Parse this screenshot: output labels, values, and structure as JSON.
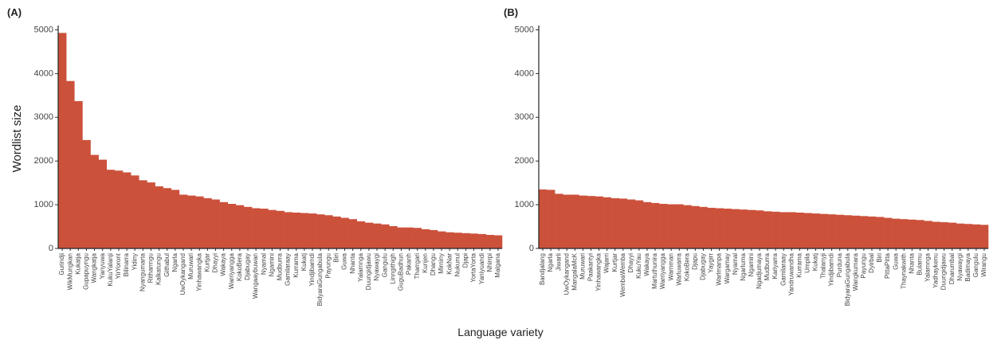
{
  "chart_data": [
    {
      "type": "bar",
      "label": "(A)",
      "ylabel": "Wordlist size",
      "xlabel": "Language variety",
      "color": "#cc513b",
      "ylim": [
        0,
        5100
      ],
      "yticks": [
        0,
        1000,
        2000,
        3000,
        4000,
        5000
      ],
      "categories": [
        "Gurindji",
        "WikMungkan",
        "Kukatja",
        "Gupapuyngu",
        "Wangkatja",
        "Yanyuwa",
        "KukuYalanji",
        "YirYoront",
        "Bilinarra",
        "Yidiny",
        "Nyangumarta",
        "Ritharrngu",
        "Kalkatungu",
        "Githabul",
        "Ngarla",
        "UwOykangand",
        "Muruwari",
        "Yinhawangka",
        "Kurtjar",
        "Dhayyi",
        "Wakaya",
        "Warriyangga",
        "KokoBera",
        "Djabugay",
        "Wangaaybuwan",
        "Nyamal",
        "Ngamini",
        "Mudburra",
        "Gamilaraay",
        "Kurrama",
        "Kukatj",
        "Yindjibarndi",
        "BidyaraGungabula",
        "Payungu",
        "Biri",
        "Guwa",
        "Nhanta",
        "Yalarnnga",
        "Duungidjawu",
        "Nyawaygi",
        "Gangulu",
        "Linngithigh",
        "GuguBadhun",
        "Pakanh",
        "Tharrgari",
        "Kunjen",
        "Dhangu",
        "Mirniny",
        "KokNar",
        "Nukunul",
        "Djapi",
        "YortaYorta",
        "Yaniyuandi",
        "Nhirrpi",
        "Malgana"
      ],
      "values": [
        4930,
        3830,
        3370,
        2480,
        2140,
        2030,
        1800,
        1780,
        1740,
        1670,
        1560,
        1510,
        1420,
        1380,
        1340,
        1230,
        1210,
        1190,
        1150,
        1120,
        1060,
        1020,
        990,
        950,
        920,
        910,
        880,
        860,
        830,
        820,
        810,
        800,
        780,
        760,
        730,
        700,
        670,
        620,
        590,
        570,
        550,
        510,
        480,
        480,
        470,
        440,
        420,
        390,
        370,
        360,
        350,
        340,
        330,
        310,
        300
      ]
    },
    {
      "type": "bar",
      "label": "(B)",
      "color": "#cc513b",
      "ylim": [
        0,
        5100
      ],
      "yticks": [
        0,
        1000,
        2000,
        3000,
        4000,
        5000
      ],
      "categories": [
        "Bandjalang",
        "Ngarla",
        "Jiwarli",
        "UwOykangand",
        "MangalaMcK",
        "Muruwari",
        "Paakantyi",
        "Yinhawangka",
        "Wajarri",
        "Kurtjar",
        "WembaWemba",
        "Dhayyi",
        "KukuYau",
        "Wakaya",
        "Martuthunira",
        "Warriyangga",
        "Warnman",
        "Warluwarra",
        "KokoBera",
        "Djapu",
        "Djabugay",
        "Yaygirr",
        "Warlmanpa",
        "Wargamay",
        "Nyamal",
        "Ngarluma",
        "Ngamini",
        "Ngadjumaya",
        "Mudburra",
        "Kariyarra",
        "Gamilaraay",
        "Yandruwandha",
        "Kurrama",
        "Umpila",
        "Kukatj",
        "Thalanyji",
        "Yindjibarndi",
        "Purduna",
        "BidyaraGungabula",
        "Wangkumara",
        "Payungu",
        "Dyirbal",
        "Biri",
        "PittaPitta",
        "Guwa",
        "Thaynakwith",
        "Nhanta",
        "Bularnu",
        "Yalarnnga",
        "Yadhaykenu",
        "Duungidjawu",
        "Dharumbal",
        "Nyawaygi",
        "Badimaya",
        "Gangulu",
        "Wirangu"
      ],
      "values": [
        1350,
        1340,
        1250,
        1230,
        1230,
        1210,
        1200,
        1190,
        1170,
        1150,
        1140,
        1120,
        1100,
        1060,
        1040,
        1020,
        1010,
        1010,
        990,
        970,
        950,
        930,
        920,
        910,
        900,
        890,
        880,
        870,
        850,
        840,
        830,
        830,
        820,
        810,
        800,
        790,
        780,
        770,
        760,
        750,
        740,
        730,
        720,
        700,
        680,
        670,
        660,
        650,
        630,
        610,
        600,
        590,
        570,
        560,
        550,
        540
      ]
    }
  ]
}
